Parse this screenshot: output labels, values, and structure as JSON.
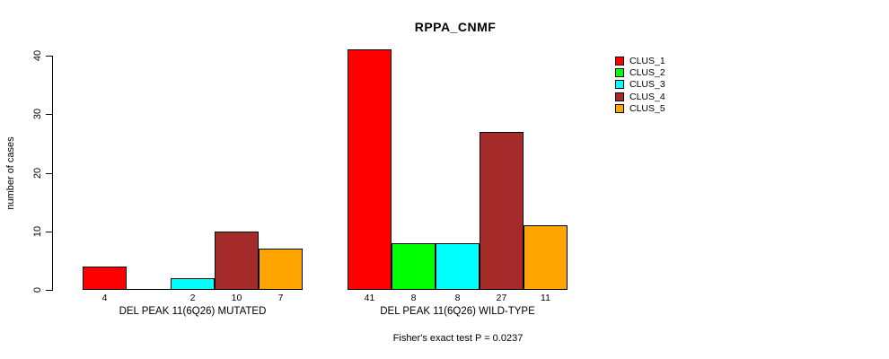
{
  "title": "RPPA_CNMF",
  "chart_data": {
    "type": "bar",
    "title": "RPPA_CNMF",
    "ylabel": "number of cases",
    "ylim": [
      0,
      40
    ],
    "yticks": [
      0,
      10,
      20,
      30,
      40
    ],
    "grid": false,
    "legend": {
      "position": "right",
      "entries": [
        {
          "label": "CLUS_1",
          "color": "#FF0000"
        },
        {
          "label": "CLUS_2",
          "color": "#00FF00"
        },
        {
          "label": "CLUS_3",
          "color": "#00FFFF"
        },
        {
          "label": "CLUS_4",
          "color": "#A52A2A"
        },
        {
          "label": "CLUS_5",
          "color": "#FFA500"
        }
      ]
    },
    "groups": [
      {
        "label": "DEL PEAK 11(6Q26) MUTATED",
        "values": [
          4,
          0,
          2,
          10,
          7
        ],
        "value_labels": [
          "4",
          "",
          "2",
          "10",
          "7"
        ]
      },
      {
        "label": "DEL PEAK 11(6Q26) WILD-TYPE",
        "values": [
          41,
          8,
          8,
          27,
          11
        ],
        "value_labels": [
          "41",
          "8",
          "8",
          "27",
          "11"
        ]
      }
    ],
    "annotation": "Fisher's exact test P = 0.0237"
  }
}
